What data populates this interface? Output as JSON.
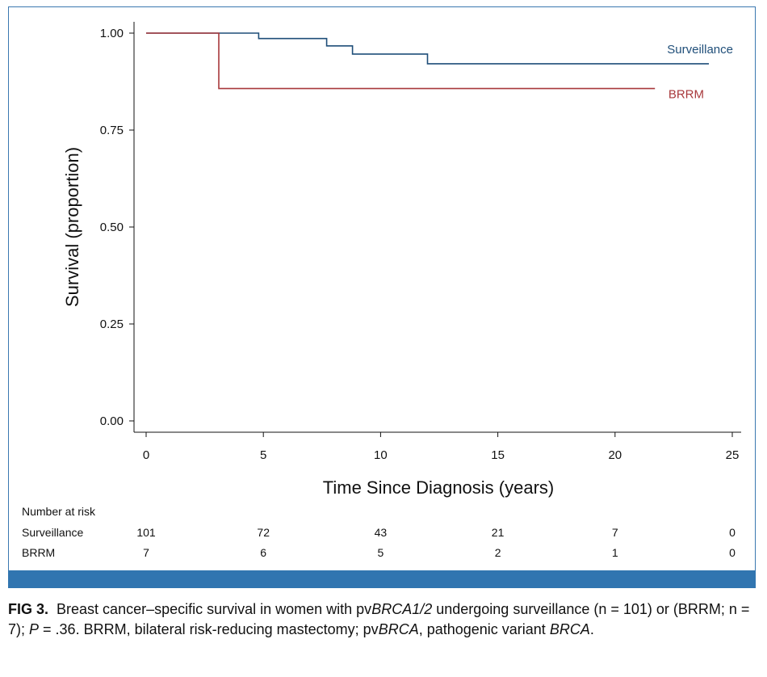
{
  "chart_data": {
    "type": "line",
    "subtype": "kaplan-meier-step",
    "xlabel": "Time Since Diagnosis (years)",
    "ylabel": "Survival (proportion)",
    "xlim": [
      0,
      25
    ],
    "ylim": [
      0,
      1
    ],
    "xticks": [
      "0",
      "5",
      "10",
      "15",
      "20",
      "25"
    ],
    "yticks": [
      "0.00",
      "0.25",
      "0.50",
      "0.75",
      "1.00"
    ],
    "series": [
      {
        "name": "Surveillance",
        "color": "#1f4e79",
        "points": [
          [
            0,
            1.0
          ],
          [
            4.8,
            1.0
          ],
          [
            4.8,
            0.986
          ],
          [
            7.7,
            0.986
          ],
          [
            7.7,
            0.967
          ],
          [
            8.8,
            0.967
          ],
          [
            8.8,
            0.946
          ],
          [
            12.0,
            0.946
          ],
          [
            12.0,
            0.921
          ],
          [
            24.0,
            0.921
          ]
        ]
      },
      {
        "name": "BRRM",
        "color": "#a8393c",
        "points": [
          [
            0,
            1.0
          ],
          [
            3.1,
            1.0
          ],
          [
            3.1,
            0.857
          ],
          [
            21.7,
            0.857
          ]
        ]
      }
    ],
    "risk_table": {
      "title": "Number at risk",
      "rows": [
        {
          "label": "Surveillance",
          "values": [
            "101",
            "72",
            "43",
            "21",
            "7",
            "0"
          ]
        },
        {
          "label": "BRRM",
          "values": [
            "7",
            "6",
            "5",
            "2",
            "1",
            "0"
          ]
        }
      ]
    }
  },
  "caption": {
    "fig_label": "FIG 3.",
    "text_1": "Breast cancer–specific survival in women with pv",
    "italic_1": "BRCA1/2",
    "text_2": " undergoing surveillance (n = 101) or (BRRM; n = 7); ",
    "italic_p": "P",
    "text_3": " = .36. BRRM, bilateral risk-reducing mastectomy; pv",
    "italic_2": "BRCA",
    "text_4": ", pathogenic variant ",
    "italic_3": "BRCA",
    "text_5": "."
  },
  "colors": {
    "frame_border": "#3a78b0",
    "bottom_bar": "#3175b0"
  }
}
